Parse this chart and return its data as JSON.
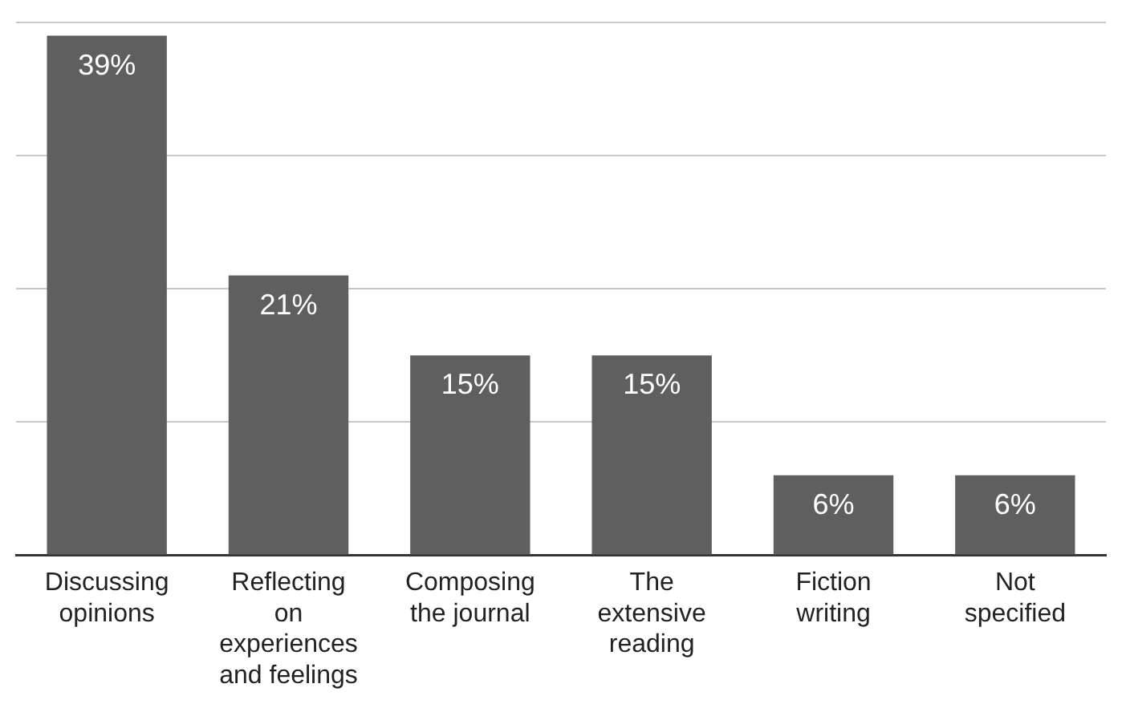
{
  "chart_data": {
    "type": "bar",
    "categories": [
      "Discussing opinions",
      "Reflecting on experiences and feelings",
      "Composing the journal",
      "The extensive reading",
      "Fiction writing",
      "Not specified"
    ],
    "values": [
      39,
      21,
      15,
      15,
      6,
      6
    ],
    "value_labels": [
      "39%",
      "21%",
      "15%",
      "15%",
      "6%",
      "6%"
    ],
    "color": "#5f5f5f",
    "ylim": [
      0,
      40
    ],
    "yticks": [
      {
        "value": 0,
        "label": null
      },
      {
        "value": 10,
        "label": null
      },
      {
        "value": 20,
        "label": null
      },
      {
        "value": 30,
        "label": null
      },
      {
        "value": 40,
        "label": null
      }
    ],
    "grid": "y",
    "tick_labels": "x",
    "legend": false
  }
}
